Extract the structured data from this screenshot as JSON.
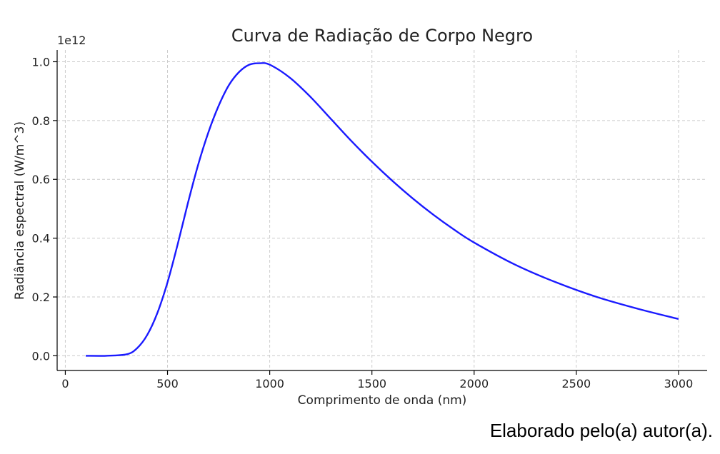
{
  "chart_data": {
    "type": "line",
    "title": "Curva de Radiação de Corpo Negro",
    "xlabel": "Comprimento de onda (nm)",
    "ylabel": "Radiância espectral (W/m^3)",
    "y_offset_label": "1e12",
    "xlim": [
      -40,
      3140
    ],
    "ylim": [
      -0.05,
      1.04
    ],
    "x_ticks": [
      0,
      500,
      1000,
      1500,
      2000,
      2500,
      3000
    ],
    "x_tick_labels": [
      "0",
      "500",
      "1000",
      "1500",
      "2000",
      "2500",
      "3000"
    ],
    "y_ticks": [
      0.0,
      0.2,
      0.4,
      0.6,
      0.8,
      1.0
    ],
    "y_tick_labels": [
      "0.0",
      "0.2",
      "0.4",
      "0.6",
      "0.8",
      "1.0"
    ],
    "grid": true,
    "series": [
      {
        "color": "#1a1aff",
        "x": [
          100,
          200,
          300,
          350,
          400,
          450,
          500,
          550,
          600,
          650,
          700,
          750,
          800,
          850,
          900,
          950,
          1000,
          1100,
          1200,
          1300,
          1400,
          1500,
          1600,
          1700,
          1800,
          1900,
          2000,
          2200,
          2400,
          2600,
          2800,
          3000
        ],
        "y": [
          0.0,
          0.0,
          0.005,
          0.025,
          0.07,
          0.145,
          0.25,
          0.38,
          0.52,
          0.65,
          0.76,
          0.85,
          0.92,
          0.965,
          0.99,
          0.995,
          0.99,
          0.945,
          0.88,
          0.805,
          0.73,
          0.66,
          0.595,
          0.535,
          0.48,
          0.43,
          0.385,
          0.31,
          0.25,
          0.2,
          0.16,
          0.125
        ]
      }
    ]
  },
  "caption": "Elaborado pelo(a) autor(a)."
}
